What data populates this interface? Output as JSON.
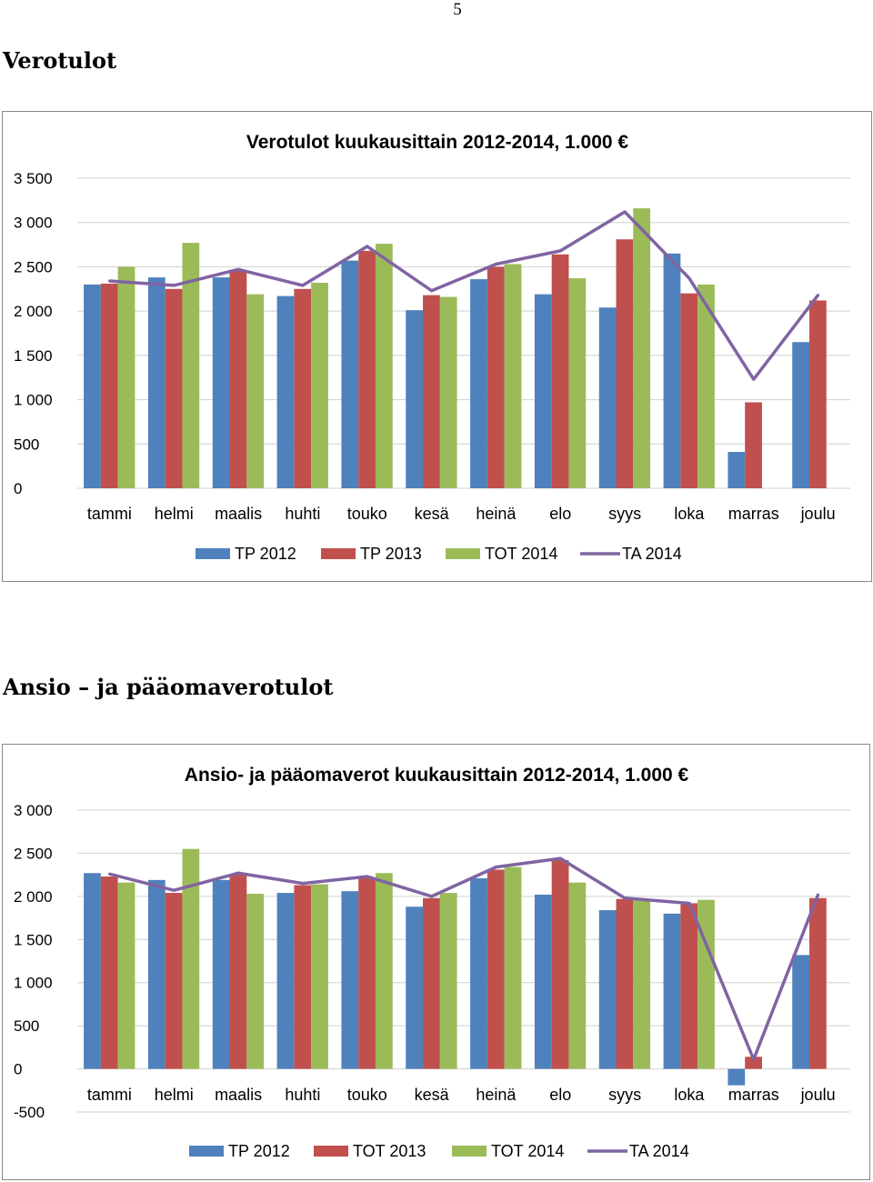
{
  "page": {
    "page_number": "5",
    "heading_1": "Verotulot",
    "heading_2": "Ansio – ja pääomaverotulot"
  },
  "colors": {
    "tp2012": "#4f81bd",
    "tp2013": "#c0504d",
    "tot2014": "#9bbb59",
    "ta2014": "#8064a2",
    "grid": "#d0d0d0"
  },
  "chart_data": [
    {
      "type": "bar",
      "title": "Verotulot kuukausittain 2012-2014, 1.000 €",
      "xlabel": "",
      "ylabel": "",
      "ylim": [
        0,
        3500
      ],
      "y_ticks": [
        0,
        500,
        1000,
        1500,
        2000,
        2500,
        3000,
        3500
      ],
      "y_tick_labels": [
        "0",
        "500",
        "1 000",
        "1 500",
        "2 000",
        "2 500",
        "3 000",
        "3 500"
      ],
      "grid": true,
      "legend_position": "bottom",
      "categories": [
        "tammi",
        "helmi",
        "maalis",
        "huhti",
        "touko",
        "kesä",
        "heinä",
        "elo",
        "syys",
        "loka",
        "marras",
        "joulu"
      ],
      "series": [
        {
          "name": "TP 2012",
          "kind": "bar",
          "values": [
            2300,
            2380,
            2380,
            2170,
            2570,
            2010,
            2360,
            2190,
            2040,
            2650,
            410,
            1650
          ]
        },
        {
          "name": "TP 2013",
          "kind": "bar",
          "values": [
            2310,
            2250,
            2460,
            2250,
            2680,
            2180,
            2500,
            2640,
            2810,
            2200,
            970,
            2120
          ]
        },
        {
          "name": "TOT 2014",
          "kind": "bar",
          "values": [
            2500,
            2770,
            2190,
            2320,
            2760,
            2160,
            2530,
            2370,
            3160,
            2300,
            null,
            null
          ]
        },
        {
          "name": "TA 2014",
          "kind": "line",
          "values": [
            2340,
            2290,
            2470,
            2290,
            2730,
            2230,
            2530,
            2680,
            3120,
            2370,
            1230,
            2180
          ]
        }
      ]
    },
    {
      "type": "bar",
      "title": "Ansio- ja pääomaverot kuukausittain 2012-2014, 1.000 €",
      "xlabel": "",
      "ylabel": "",
      "ylim": [
        -500,
        3000
      ],
      "y_ticks": [
        -500,
        0,
        500,
        1000,
        1500,
        2000,
        2500,
        3000
      ],
      "y_tick_labels": [
        "-500",
        "0",
        "500",
        "1 000",
        "1 500",
        "2 000",
        "2 500",
        "3 000"
      ],
      "grid": true,
      "legend_position": "bottom",
      "categories": [
        "tammi",
        "helmi",
        "maalis",
        "huhti",
        "touko",
        "kesä",
        "heinä",
        "elo",
        "syys",
        "loka",
        "marras",
        "joulu"
      ],
      "series": [
        {
          "name": "TP 2012",
          "kind": "bar",
          "values": [
            2270,
            2190,
            2190,
            2040,
            2060,
            1880,
            2210,
            2020,
            1840,
            1800,
            -190,
            1320
          ]
        },
        {
          "name": "TOT 2013",
          "kind": "bar",
          "values": [
            2230,
            2040,
            2250,
            2130,
            2210,
            1980,
            2310,
            2420,
            1970,
            1920,
            140,
            1980
          ]
        },
        {
          "name": "TOT 2014",
          "kind": "bar",
          "values": [
            2160,
            2550,
            2030,
            2140,
            2270,
            2040,
            2340,
            2160,
            1960,
            1960,
            null,
            null
          ]
        },
        {
          "name": "TA 2014",
          "kind": "line",
          "values": [
            2260,
            2070,
            2270,
            2150,
            2230,
            2000,
            2340,
            2440,
            1980,
            1920,
            110,
            2020
          ]
        }
      ]
    }
  ]
}
